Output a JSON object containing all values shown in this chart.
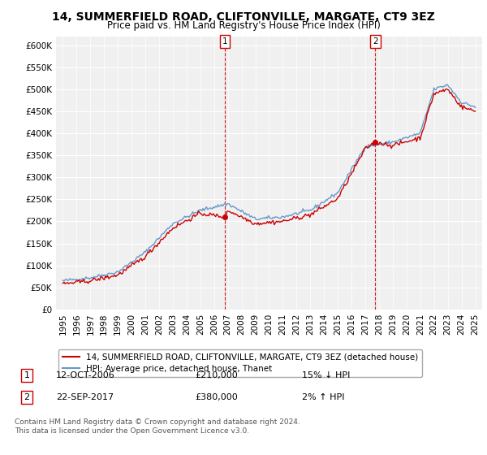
{
  "title": "14, SUMMERFIELD ROAD, CLIFTONVILLE, MARGATE, CT9 3EZ",
  "subtitle": "Price paid vs. HM Land Registry's House Price Index (HPI)",
  "ylabel_ticks": [
    "£0",
    "£50K",
    "£100K",
    "£150K",
    "£200K",
    "£250K",
    "£300K",
    "£350K",
    "£400K",
    "£450K",
    "£500K",
    "£550K",
    "£600K"
  ],
  "ytick_values": [
    0,
    50000,
    100000,
    150000,
    200000,
    250000,
    300000,
    350000,
    400000,
    450000,
    500000,
    550000,
    600000
  ],
  "ylim": [
    0,
    620000
  ],
  "xlim_start": 1994.5,
  "xlim_end": 2025.5,
  "sale1_x": 2006.78,
  "sale1_y": 210000,
  "sale1_label": "1",
  "sale2_x": 2017.72,
  "sale2_y": 380000,
  "sale2_label": "2",
  "sale_color": "#cc0000",
  "hpi_color": "#6699cc",
  "legend_sale_label": "14, SUMMERFIELD ROAD, CLIFTONVILLE, MARGATE, CT9 3EZ (detached house)",
  "legend_hpi_label": "HPI: Average price, detached house, Thanet",
  "annotation1_date": "12-OCT-2006",
  "annotation1_price": "£210,000",
  "annotation1_hpi": "15% ↓ HPI",
  "annotation2_date": "22-SEP-2017",
  "annotation2_price": "£380,000",
  "annotation2_hpi": "2% ↑ HPI",
  "footnote": "Contains HM Land Registry data © Crown copyright and database right 2024.\nThis data is licensed under the Open Government Licence v3.0.",
  "background_color": "#ffffff",
  "plot_bg_color": "#f0f0f0"
}
